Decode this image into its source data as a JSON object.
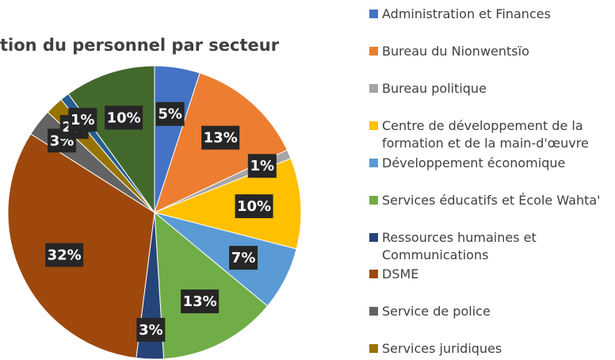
{
  "chart_data": {
    "type": "pie",
    "title": "tion du personnel par secteur",
    "categories": [
      "Administration et Finances",
      "Bureau du Nionwentsïo",
      "Bureau politique",
      "Centre de développement de la formation et de la main-d'œuvre",
      "Développement économique",
      "Services éducatifs et École Wahta'",
      "Ressources humaines et Communications",
      "DSME",
      "Service de police",
      "Services juridiques",
      null,
      null
    ],
    "values": [
      5,
      13,
      1,
      10,
      7,
      13,
      3,
      32,
      3,
      2,
      1,
      10
    ],
    "value_labels": [
      "5%",
      "13%",
      "1%",
      "10%",
      "7%",
      "13%",
      "3%",
      "32%",
      "3%",
      "2%",
      "1%",
      "10%"
    ],
    "colors": [
      "#4472c4",
      "#ed7d31",
      "#a5a5a5",
      "#ffc000",
      "#5b9bd5",
      "#70ad47",
      "#264478",
      "#9e480e",
      "#636363",
      "#997300",
      "#255e91",
      "#43682b"
    ],
    "legend": "right"
  }
}
